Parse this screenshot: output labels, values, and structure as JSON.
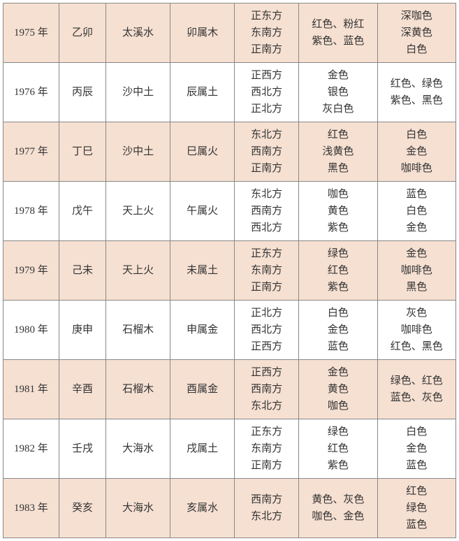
{
  "table": {
    "row_colors": {
      "alt_bg": "#f6e0d2",
      "plain_bg": "#ffffff",
      "border": "#888888"
    },
    "font": {
      "family": "SimSun",
      "size_pt": 11
    },
    "rows": [
      {
        "bg": "alt",
        "year": "1975 年",
        "ganzhi": "乙卯",
        "nayin": "太溪水",
        "wuxing": "卯属木",
        "directions": [
          "正东方",
          "东南方",
          "正南方"
        ],
        "good_colors": [
          "红色、粉红",
          "紫色、蓝色"
        ],
        "bad_colors": [
          "深咖色",
          "深黄色",
          "白色"
        ]
      },
      {
        "bg": "plain",
        "year": "1976 年",
        "ganzhi": "丙辰",
        "nayin": "沙中土",
        "wuxing": "辰属土",
        "directions": [
          "正西方",
          "西北方",
          "正北方"
        ],
        "good_colors": [
          "金色",
          "银色",
          "灰白色"
        ],
        "bad_colors": [
          "红色、绿色",
          "紫色、黑色"
        ]
      },
      {
        "bg": "alt",
        "year": "1977 年",
        "ganzhi": "丁巳",
        "nayin": "沙中土",
        "wuxing": "巳属火",
        "directions": [
          "东北方",
          "西南方",
          "正南方"
        ],
        "good_colors": [
          "红色",
          "浅黄色",
          "黑色"
        ],
        "bad_colors": [
          "白色",
          "金色",
          "咖啡色"
        ]
      },
      {
        "bg": "plain",
        "year": "1978 年",
        "ganzhi": "戊午",
        "nayin": "天上火",
        "wuxing": "午属火",
        "directions": [
          "东北方",
          "西南方",
          "西北方"
        ],
        "good_colors": [
          "咖色",
          "黄色",
          "紫色"
        ],
        "bad_colors": [
          "蓝色",
          "白色",
          "金色"
        ]
      },
      {
        "bg": "alt",
        "year": "1979 年",
        "ganzhi": "己未",
        "nayin": "天上火",
        "wuxing": "未属土",
        "directions": [
          "正东方",
          "东南方",
          "正南方"
        ],
        "good_colors": [
          "绿色",
          "红色",
          "紫色"
        ],
        "bad_colors": [
          "金色",
          "咖啡色",
          "黑色"
        ]
      },
      {
        "bg": "plain",
        "year": "1980 年",
        "ganzhi": "庚申",
        "nayin": "石榴木",
        "wuxing": "申属金",
        "directions": [
          "正北方",
          "西北方",
          "正西方"
        ],
        "good_colors": [
          "白色",
          "金色",
          "蓝色"
        ],
        "bad_colors": [
          "灰色",
          "咖啡色",
          "红色、黑色"
        ]
      },
      {
        "bg": "alt",
        "year": "1981 年",
        "ganzhi": "辛酉",
        "nayin": "石榴木",
        "wuxing": "酉属金",
        "directions": [
          "正西方",
          "西南方",
          "东北方"
        ],
        "good_colors": [
          "金色",
          "黄色",
          "咖色"
        ],
        "bad_colors": [
          "绿色、红色",
          "蓝色、灰色"
        ]
      },
      {
        "bg": "plain",
        "year": "1982 年",
        "ganzhi": "壬戌",
        "nayin": "大海水",
        "wuxing": "戌属土",
        "directions": [
          "正东方",
          "东南方",
          "正南方"
        ],
        "good_colors": [
          "绿色",
          "红色",
          "紫色"
        ],
        "bad_colors": [
          "白色",
          "金色",
          "蓝色"
        ]
      },
      {
        "bg": "alt",
        "year": "1983 年",
        "ganzhi": "癸亥",
        "nayin": "大海水",
        "wuxing": "亥属水",
        "directions": [
          "西南方",
          "东北方"
        ],
        "good_colors": [
          "黄色、灰色",
          "咖色、金色"
        ],
        "bad_colors": [
          "红色",
          "绿色",
          "蓝色"
        ]
      }
    ]
  }
}
